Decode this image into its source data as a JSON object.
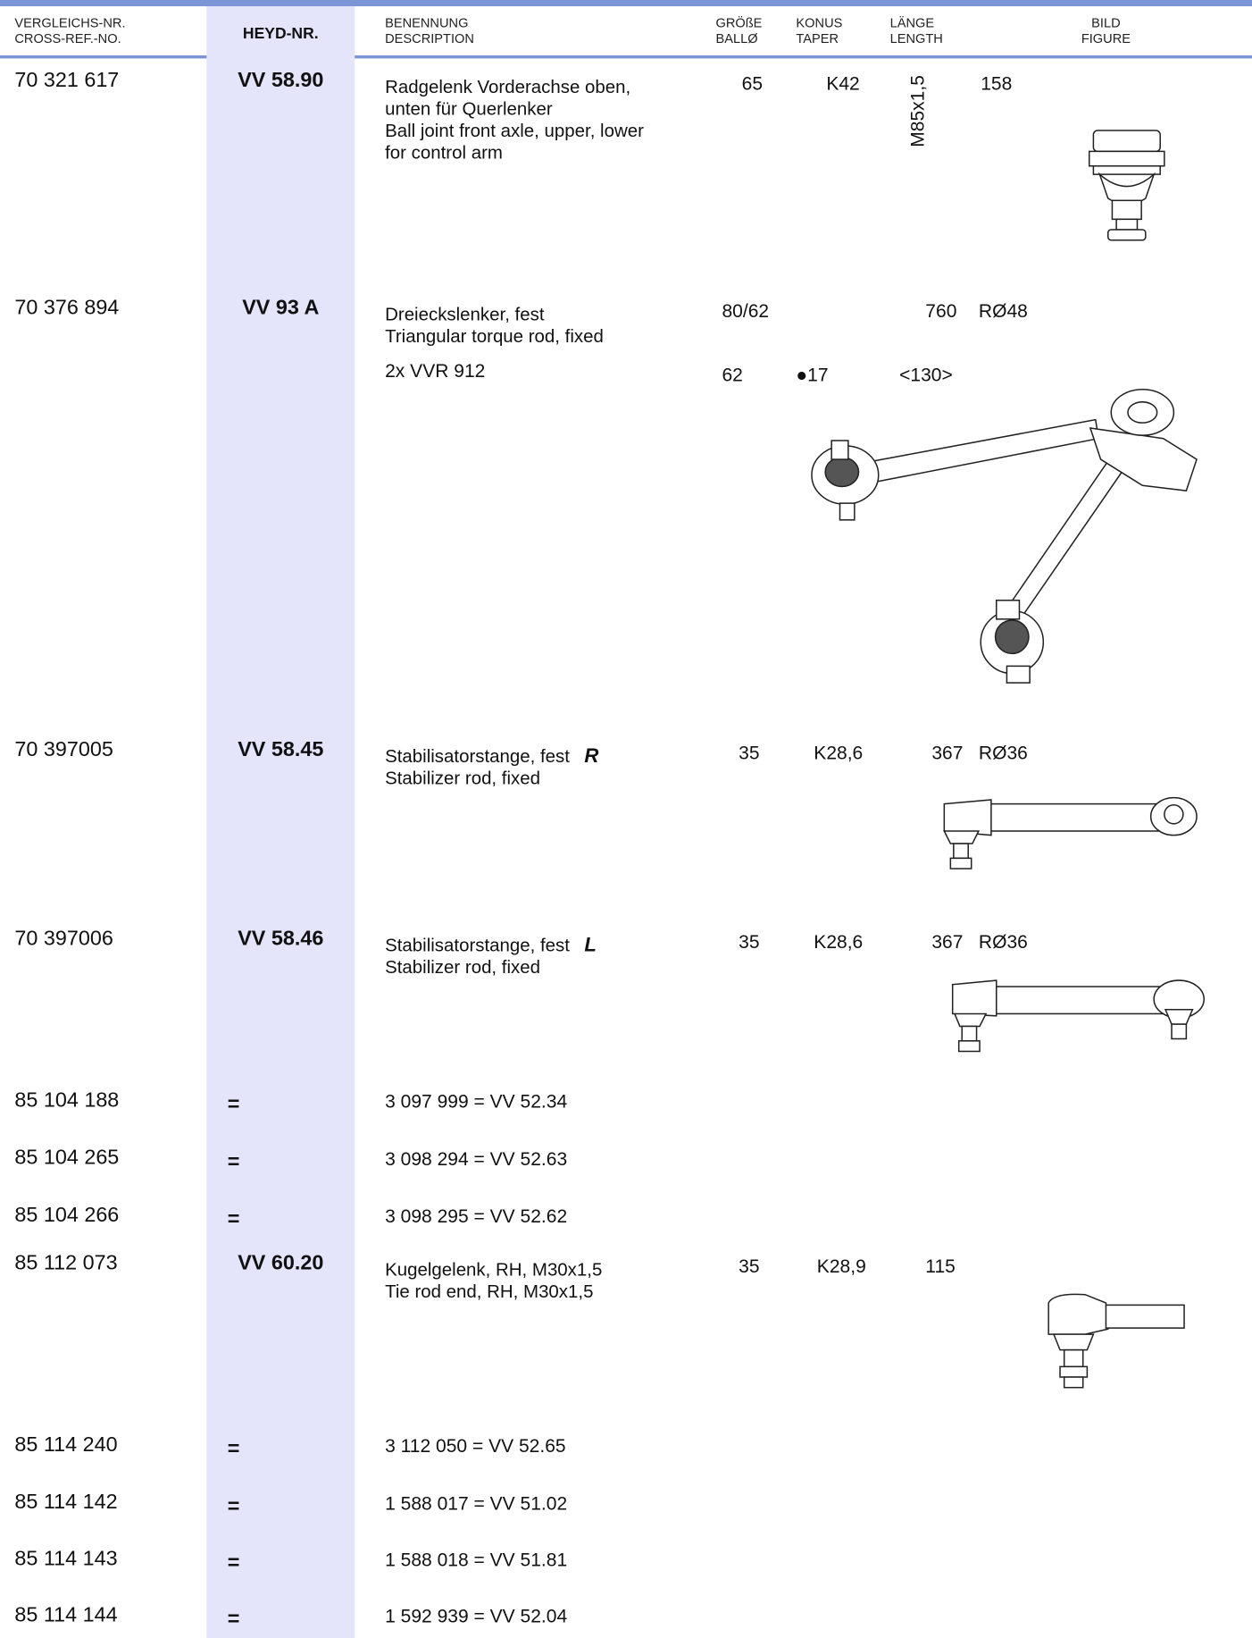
{
  "header": {
    "cross_ref": [
      "VERGLEICHS-NR.",
      "CROSS-REF.-NO."
    ],
    "heyd": "HEYD-NR.",
    "description": [
      "BENENNUNG",
      "DESCRIPTION"
    ],
    "size": [
      "GRÖßE",
      "BALLØ"
    ],
    "taper": [
      "KONUS",
      "TAPER"
    ],
    "length": [
      "LÄNGE",
      "LENGTH"
    ],
    "figure": [
      "BILD",
      "FIGURE"
    ]
  },
  "rows": [
    {
      "cross_ref": "70 321 617",
      "heyd": "VV 58.90",
      "description": [
        "Radgelenk Vorderachse oben,",
        "unten für Querlenker",
        "Ball joint front axle, upper, lower",
        "for control arm"
      ],
      "size": "65",
      "taper": "K42",
      "thread": "M85x1,5",
      "length": "158"
    },
    {
      "cross_ref": "70 376 894",
      "heyd": "VV 93 A",
      "description": [
        "Dreieckslenker, fest",
        "Triangular torque rod, fixed"
      ],
      "size": "80/62",
      "length": "760",
      "extra": "RØ48",
      "sub": {
        "note": "2x VVR 912",
        "size": "62",
        "taper": "●17",
        "length": "<130>"
      }
    },
    {
      "cross_ref": "70 397005",
      "heyd": "VV 58.45",
      "description": [
        "Stabilisatorstange, fest",
        "Stabilizer rod, fixed"
      ],
      "side": "R",
      "size": "35",
      "taper": "K28,6",
      "length": "367",
      "extra": "RØ36"
    },
    {
      "cross_ref": "70 397006",
      "heyd": "VV 58.46",
      "description": [
        "Stabilisatorstange, fest",
        "Stabilizer rod, fixed"
      ],
      "side": "L",
      "size": "35",
      "taper": "K28,6",
      "length": "367",
      "extra": "RØ36"
    },
    {
      "cross_ref": "85 104 188",
      "heyd": "=",
      "description": [
        "3 097 999 = VV 52.34"
      ]
    },
    {
      "cross_ref": "85 104 265",
      "heyd": "=",
      "description": [
        "3 098 294 = VV 52.63"
      ]
    },
    {
      "cross_ref": "85 104 266",
      "heyd": "=",
      "description": [
        "3 098 295 = VV 52.62"
      ]
    },
    {
      "cross_ref": "85 112 073",
      "heyd": "VV 60.20",
      "description": [
        "Kugelgelenk, RH, M30x1,5",
        "Tie rod end, RH, M30x1,5"
      ],
      "size": "35",
      "taper": "K28,9",
      "length": "115"
    },
    {
      "cross_ref": "85 114 240",
      "heyd": "=",
      "description": [
        "3 112 050 = VV 52.65"
      ]
    },
    {
      "cross_ref": "85 114 142",
      "heyd": "=",
      "description": [
        "1 588 017 = VV 51.02"
      ]
    },
    {
      "cross_ref": "85 114 143",
      "heyd": "=",
      "description": [
        "1 588 018 = VV 51.81"
      ]
    },
    {
      "cross_ref": "85 114 144",
      "heyd": "=",
      "description": [
        "1 592 939 = VV 52.04"
      ]
    }
  ]
}
